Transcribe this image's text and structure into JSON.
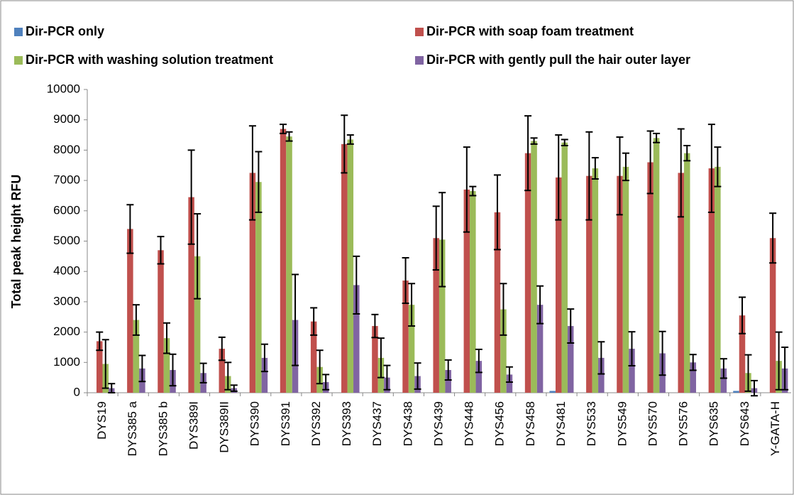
{
  "chart_data": {
    "type": "bar",
    "y_label": "Total peak height RFU",
    "categories": [
      "DYS19",
      "DYS385 a",
      "DYS385 b",
      "DYS389I",
      "DYS389II",
      "DYS390",
      "DYS391",
      "DYS392",
      "DYS393",
      "DYS437",
      "DYS438",
      "DYS439",
      "DYS448",
      "DYS456",
      "DYS458",
      "DYS481",
      "DYS533",
      "DYS549",
      "DYS570",
      "DYS576",
      "DYS635",
      "DYS643",
      "Y-GATA-H"
    ],
    "series": [
      {
        "name": "Dir-PCR only",
        "color": "#4f81bd",
        "values": [
          0,
          0,
          0,
          0,
          0,
          0,
          0,
          0,
          0,
          0,
          0,
          0,
          0,
          0,
          0,
          60,
          0,
          0,
          0,
          0,
          0,
          60,
          0
        ],
        "errors": [
          0,
          0,
          0,
          0,
          0,
          0,
          0,
          0,
          0,
          0,
          0,
          0,
          0,
          0,
          0,
          0,
          0,
          0,
          0,
          0,
          0,
          0,
          0
        ]
      },
      {
        "name": "Dir-PCR with soap foam treatment",
        "color": "#c0504d",
        "values": [
          1700,
          5400,
          4700,
          6450,
          1450,
          7250,
          8700,
          2350,
          8200,
          2200,
          3700,
          5100,
          6700,
          5950,
          7900,
          7100,
          7150,
          7150,
          7600,
          7250,
          7400,
          2550,
          5100
        ],
        "errors": [
          300,
          800,
          450,
          1550,
          380,
          1550,
          150,
          450,
          950,
          380,
          750,
          1050,
          1400,
          1230,
          1230,
          1400,
          1450,
          1280,
          1030,
          1450,
          1450,
          600,
          820
        ]
      },
      {
        "name": "Dir-PCR with washing solution treatment",
        "color": "#9bbb59",
        "values": [
          950,
          2400,
          1800,
          4500,
          550,
          6950,
          8450,
          850,
          8350,
          1150,
          2900,
          5050,
          6650,
          2750,
          8300,
          8250,
          7400,
          7450,
          8400,
          7900,
          7450,
          650,
          1050
        ],
        "errors": [
          800,
          500,
          500,
          1400,
          450,
          1000,
          150,
          550,
          150,
          650,
          700,
          1550,
          150,
          850,
          100,
          100,
          350,
          450,
          150,
          250,
          650,
          600,
          950
        ]
      },
      {
        "name": "Dir-PCR with gently pull the hair outer layer",
        "color": "#8064a2",
        "values": [
          150,
          800,
          750,
          650,
          150,
          1150,
          2400,
          350,
          3550,
          500,
          550,
          750,
          1050,
          600,
          2900,
          2200,
          1150,
          1450,
          1300,
          1000,
          800,
          150,
          800
        ],
        "errors": [
          150,
          430,
          520,
          320,
          100,
          450,
          1500,
          250,
          950,
          400,
          430,
          330,
          380,
          250,
          620,
          560,
          530,
          560,
          720,
          260,
          320,
          250,
          700
        ]
      }
    ],
    "ylim": [
      0,
      10000
    ],
    "yticks": [
      0,
      1000,
      2000,
      3000,
      4000,
      5000,
      6000,
      7000,
      8000,
      9000,
      10000
    ],
    "grid": false
  }
}
